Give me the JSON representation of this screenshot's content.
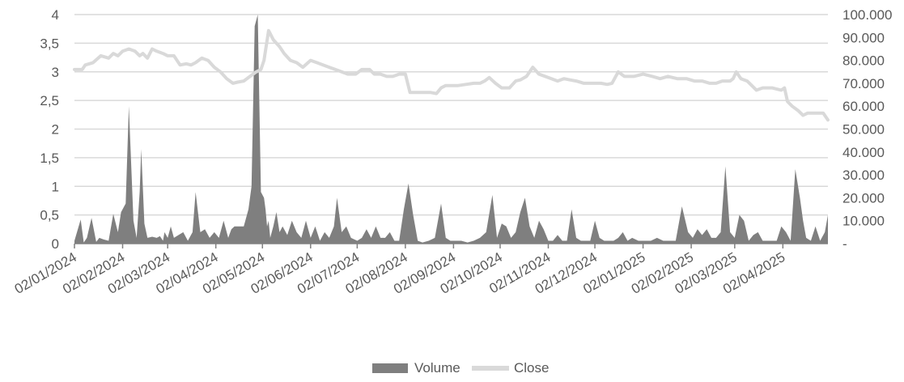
{
  "chart_data": {
    "type": "combo",
    "subtypes": {
      "Volume": "area",
      "Close": "line"
    },
    "x_axis": {
      "type": "date",
      "range": [
        "2024-01-02",
        "2025-05-01"
      ],
      "tick_labels": [
        "02/01/2024",
        "02/02/2024",
        "02/03/2024",
        "02/04/2024",
        "02/05/2024",
        "02/06/2024",
        "02/07/2024",
        "02/08/2024",
        "02/09/2024",
        "02/10/2024",
        "02/11/2024",
        "02/12/2024",
        "02/01/2025",
        "02/02/2025",
        "02/03/2025",
        "02/04/2025"
      ],
      "tick_dates": [
        "2024-01-02",
        "2024-02-02",
        "2024-03-02",
        "2024-04-02",
        "2024-05-02",
        "2024-06-02",
        "2024-07-02",
        "2024-08-02",
        "2024-09-02",
        "2024-10-02",
        "2024-11-02",
        "2024-12-02",
        "2025-01-02",
        "2025-02-02",
        "2025-03-02",
        "2025-04-02"
      ]
    },
    "y_left": {
      "range": [
        0,
        4
      ],
      "tick_labels": [
        "0",
        "0,5",
        "1",
        "1,5",
        "2",
        "2,5",
        "3",
        "3,5",
        "4"
      ],
      "tick_values": [
        0,
        0.5,
        1,
        1.5,
        2,
        2.5,
        3,
        3.5,
        4
      ]
    },
    "y_right": {
      "range": [
        0,
        100000
      ],
      "tick_labels": [
        "-",
        "10.000",
        "20.000",
        "30.000",
        "40.000",
        "50.000",
        "60.000",
        "70.000",
        "80.000",
        "90.000",
        "100.000"
      ],
      "tick_values": [
        0,
        10000,
        20000,
        30000,
        40000,
        50000,
        60000,
        70000,
        80000,
        90000,
        100000
      ]
    },
    "grid": "horizontal",
    "legend": {
      "position": "bottom",
      "entries": [
        "Volume",
        "Close"
      ]
    },
    "colors": {
      "Volume": "#7f7f7f",
      "Close": "#d9d9d9",
      "grid": "#d9d9d9",
      "axis": "#808080",
      "text": "#595959"
    },
    "series": [
      {
        "name": "Volume",
        "axis": "left",
        "x": [
          "2024-01-02",
          "2024-01-06",
          "2024-01-08",
          "2024-01-10",
          "2024-01-13",
          "2024-01-16",
          "2024-01-18",
          "2024-01-21",
          "2024-01-24",
          "2024-01-27",
          "2024-01-30",
          "2024-02-01",
          "2024-02-04",
          "2024-02-06",
          "2024-02-09",
          "2024-02-11",
          "2024-02-13",
          "2024-02-14",
          "2024-02-16",
          "2024-02-18",
          "2024-02-21",
          "2024-02-24",
          "2024-02-26",
          "2024-02-28",
          "2024-02-29",
          "2024-03-02",
          "2024-03-04",
          "2024-03-06",
          "2024-03-09",
          "2024-03-12",
          "2024-03-15",
          "2024-03-18",
          "2024-03-20",
          "2024-03-23",
          "2024-03-26",
          "2024-03-29",
          "2024-04-01",
          "2024-04-04",
          "2024-04-07",
          "2024-04-10",
          "2024-04-12",
          "2024-04-14",
          "2024-04-17",
          "2024-04-20",
          "2024-04-23",
          "2024-04-25",
          "2024-04-27",
          "2024-04-29",
          "2024-05-01",
          "2024-05-03",
          "2024-05-04",
          "2024-05-05",
          "2024-05-06",
          "2024-05-07",
          "2024-05-09",
          "2024-05-11",
          "2024-05-13",
          "2024-05-15",
          "2024-05-18",
          "2024-05-21",
          "2024-05-24",
          "2024-05-27",
          "2024-05-30",
          "2024-06-02",
          "2024-06-05",
          "2024-06-08",
          "2024-06-11",
          "2024-06-14",
          "2024-06-17",
          "2024-06-19",
          "2024-06-22",
          "2024-06-25",
          "2024-06-28",
          "2024-07-02",
          "2024-07-05",
          "2024-07-08",
          "2024-07-11",
          "2024-07-14",
          "2024-07-17",
          "2024-07-20",
          "2024-07-23",
          "2024-07-26",
          "2024-07-29",
          "2024-08-01",
          "2024-08-04",
          "2024-08-07",
          "2024-08-10",
          "2024-08-13",
          "2024-08-17",
          "2024-08-21",
          "2024-08-25",
          "2024-08-28",
          "2024-08-31",
          "2024-09-03",
          "2024-09-07",
          "2024-09-11",
          "2024-09-15",
          "2024-09-19",
          "2024-09-23",
          "2024-09-27",
          "2024-09-30",
          "2024-10-03",
          "2024-10-06",
          "2024-10-09",
          "2024-10-12",
          "2024-10-15",
          "2024-10-18",
          "2024-10-21",
          "2024-10-24",
          "2024-10-27",
          "2024-10-30",
          "2024-11-02",
          "2024-11-05",
          "2024-11-08",
          "2024-11-11",
          "2024-11-14",
          "2024-11-17",
          "2024-11-20",
          "2024-11-23",
          "2024-11-26",
          "2024-11-29",
          "2024-12-02",
          "2024-12-05",
          "2024-12-08",
          "2024-12-11",
          "2024-12-14",
          "2024-12-17",
          "2024-12-20",
          "2024-12-23",
          "2024-12-26",
          "2024-12-30",
          "2025-01-03",
          "2025-01-07",
          "2025-01-11",
          "2025-01-15",
          "2025-01-19",
          "2025-01-23",
          "2025-01-27",
          "2025-01-31",
          "2025-02-03",
          "2025-02-06",
          "2025-02-09",
          "2025-02-12",
          "2025-02-15",
          "2025-02-18",
          "2025-02-21",
          "2025-02-24",
          "2025-02-27",
          "2025-03-02",
          "2025-03-05",
          "2025-03-08",
          "2025-03-11",
          "2025-03-14",
          "2025-03-17",
          "2025-03-20",
          "2025-03-23",
          "2025-03-26",
          "2025-03-29",
          "2025-04-01",
          "2025-04-04",
          "2025-04-07",
          "2025-04-10",
          "2025-04-13",
          "2025-04-15",
          "2025-04-17",
          "2025-04-20",
          "2025-04-23",
          "2025-04-26",
          "2025-04-29",
          "2025-05-01"
        ],
        "values": [
          0.05,
          0.42,
          0.02,
          0.1,
          0.45,
          0.03,
          0.1,
          0.07,
          0.05,
          0.52,
          0.2,
          0.55,
          0.7,
          2.4,
          0.4,
          0.1,
          0.9,
          1.65,
          0.35,
          0.1,
          0.12,
          0.1,
          0.13,
          0.05,
          0.2,
          0.1,
          0.3,
          0.1,
          0.15,
          0.2,
          0.05,
          0.2,
          0.9,
          0.2,
          0.25,
          0.1,
          0.2,
          0.1,
          0.4,
          0.1,
          0.25,
          0.3,
          0.3,
          0.3,
          0.6,
          1.0,
          3.8,
          4.0,
          0.9,
          0.8,
          0.6,
          0.3,
          0.4,
          0.1,
          0.3,
          0.55,
          0.2,
          0.3,
          0.15,
          0.4,
          0.2,
          0.1,
          0.4,
          0.1,
          0.3,
          0.05,
          0.2,
          0.1,
          0.3,
          0.8,
          0.2,
          0.3,
          0.1,
          0.05,
          0.1,
          0.25,
          0.1,
          0.3,
          0.1,
          0.1,
          0.2,
          0.05,
          0.05,
          0.6,
          1.05,
          0.5,
          0.05,
          0.02,
          0.05,
          0.1,
          0.7,
          0.1,
          0.05,
          0.05,
          0.05,
          0.02,
          0.05,
          0.1,
          0.2,
          0.85,
          0.1,
          0.35,
          0.3,
          0.1,
          0.2,
          0.55,
          0.8,
          0.3,
          0.1,
          0.4,
          0.25,
          0.05,
          0.05,
          0.15,
          0.05,
          0.05,
          0.6,
          0.1,
          0.05,
          0.05,
          0.05,
          0.4,
          0.1,
          0.05,
          0.05,
          0.05,
          0.1,
          0.2,
          0.05,
          0.1,
          0.05,
          0.05,
          0.05,
          0.1,
          0.05,
          0.05,
          0.05,
          0.65,
          0.2,
          0.1,
          0.25,
          0.15,
          0.25,
          0.1,
          0.1,
          0.2,
          1.35,
          0.2,
          0.1,
          0.5,
          0.4,
          0.05,
          0.15,
          0.2,
          0.05,
          0.05,
          0.05,
          0.05,
          0.3,
          0.2,
          0.05,
          1.3,
          0.8,
          0.4,
          0.1,
          0.05,
          0.3,
          0.05,
          0.2,
          0.5
        ]
      },
      {
        "name": "Close",
        "axis": "right",
        "x": [
          "2024-01-02",
          "2024-01-07",
          "2024-01-09",
          "2024-01-14",
          "2024-01-19",
          "2024-01-24",
          "2024-01-27",
          "2024-01-30",
          "2024-02-02",
          "2024-02-06",
          "2024-02-10",
          "2024-02-13",
          "2024-02-15",
          "2024-02-18",
          "2024-02-21",
          "2024-02-24",
          "2024-02-28",
          "2024-03-02",
          "2024-03-06",
          "2024-03-10",
          "2024-03-14",
          "2024-03-17",
          "2024-03-20",
          "2024-03-24",
          "2024-03-28",
          "2024-04-01",
          "2024-04-05",
          "2024-04-09",
          "2024-04-13",
          "2024-04-16",
          "2024-04-20",
          "2024-04-24",
          "2024-04-28",
          "2024-05-01",
          "2024-05-03",
          "2024-05-06",
          "2024-05-09",
          "2024-05-13",
          "2024-05-16",
          "2024-05-20",
          "2024-05-24",
          "2024-05-28",
          "2024-06-02",
          "2024-06-06",
          "2024-06-10",
          "2024-06-14",
          "2024-06-18",
          "2024-06-22",
          "2024-06-26",
          "2024-07-01",
          "2024-07-05",
          "2024-07-10",
          "2024-07-13",
          "2024-07-17",
          "2024-07-21",
          "2024-07-25",
          "2024-07-29",
          "2024-08-02",
          "2024-08-05",
          "2024-08-09",
          "2024-08-13",
          "2024-08-18",
          "2024-08-22",
          "2024-08-25",
          "2024-08-28",
          "2024-09-01",
          "2024-09-05",
          "2024-09-10",
          "2024-09-15",
          "2024-09-19",
          "2024-09-22",
          "2024-09-25",
          "2024-09-29",
          "2024-10-03",
          "2024-10-08",
          "2024-10-12",
          "2024-10-15",
          "2024-10-19",
          "2024-10-23",
          "2024-10-27",
          "2024-10-31",
          "2024-11-04",
          "2024-11-08",
          "2024-11-12",
          "2024-11-16",
          "2024-11-20",
          "2024-11-25",
          "2024-12-02",
          "2024-12-06",
          "2024-12-10",
          "2024-12-13",
          "2024-12-17",
          "2024-12-21",
          "2024-12-27",
          "2025-01-02",
          "2025-01-08",
          "2025-01-13",
          "2025-01-18",
          "2025-01-24",
          "2025-01-30",
          "2025-02-04",
          "2025-02-09",
          "2025-02-14",
          "2025-02-18",
          "2025-02-22",
          "2025-02-27",
          "2025-03-01",
          "2025-03-03",
          "2025-03-06",
          "2025-03-10",
          "2025-03-13",
          "2025-03-16",
          "2025-03-20",
          "2025-03-26",
          "2025-04-01",
          "2025-04-03",
          "2025-04-05",
          "2025-04-08",
          "2025-04-12",
          "2025-04-15",
          "2025-04-18",
          "2025-04-23",
          "2025-04-28",
          "2025-05-01"
        ],
        "values": [
          76000,
          76000,
          78000,
          79000,
          82000,
          81000,
          83000,
          82000,
          84000,
          85000,
          84000,
          82000,
          83000,
          81000,
          85000,
          84000,
          83000,
          82000,
          82000,
          78000,
          78500,
          78000,
          79000,
          81000,
          80000,
          77000,
          75000,
          72000,
          70000,
          70500,
          71000,
          73000,
          75000,
          76000,
          80000,
          93000,
          89000,
          86000,
          83000,
          80000,
          79000,
          77000,
          80000,
          79000,
          78000,
          77000,
          76000,
          75000,
          74000,
          74000,
          76000,
          76000,
          74000,
          74000,
          73000,
          73000,
          74000,
          74000,
          66000,
          66000,
          66000,
          66000,
          65500,
          68000,
          69000,
          69000,
          69000,
          69500,
          70000,
          70000,
          71000,
          72500,
          70000,
          68000,
          68000,
          71000,
          71500,
          73000,
          77000,
          74000,
          73000,
          72000,
          71000,
          72000,
          71500,
          71000,
          70000,
          70000,
          70000,
          69500,
          70000,
          75000,
          73000,
          73000,
          74000,
          73000,
          72000,
          73000,
          72000,
          72000,
          71000,
          71000,
          70000,
          70000,
          71000,
          71000,
          72000,
          75000,
          72000,
          71000,
          69000,
          67000,
          68000,
          68000,
          67000,
          68000,
          62000,
          60000,
          58000,
          56000,
          57000,
          57000,
          57000,
          54000
        ]
      }
    ]
  }
}
